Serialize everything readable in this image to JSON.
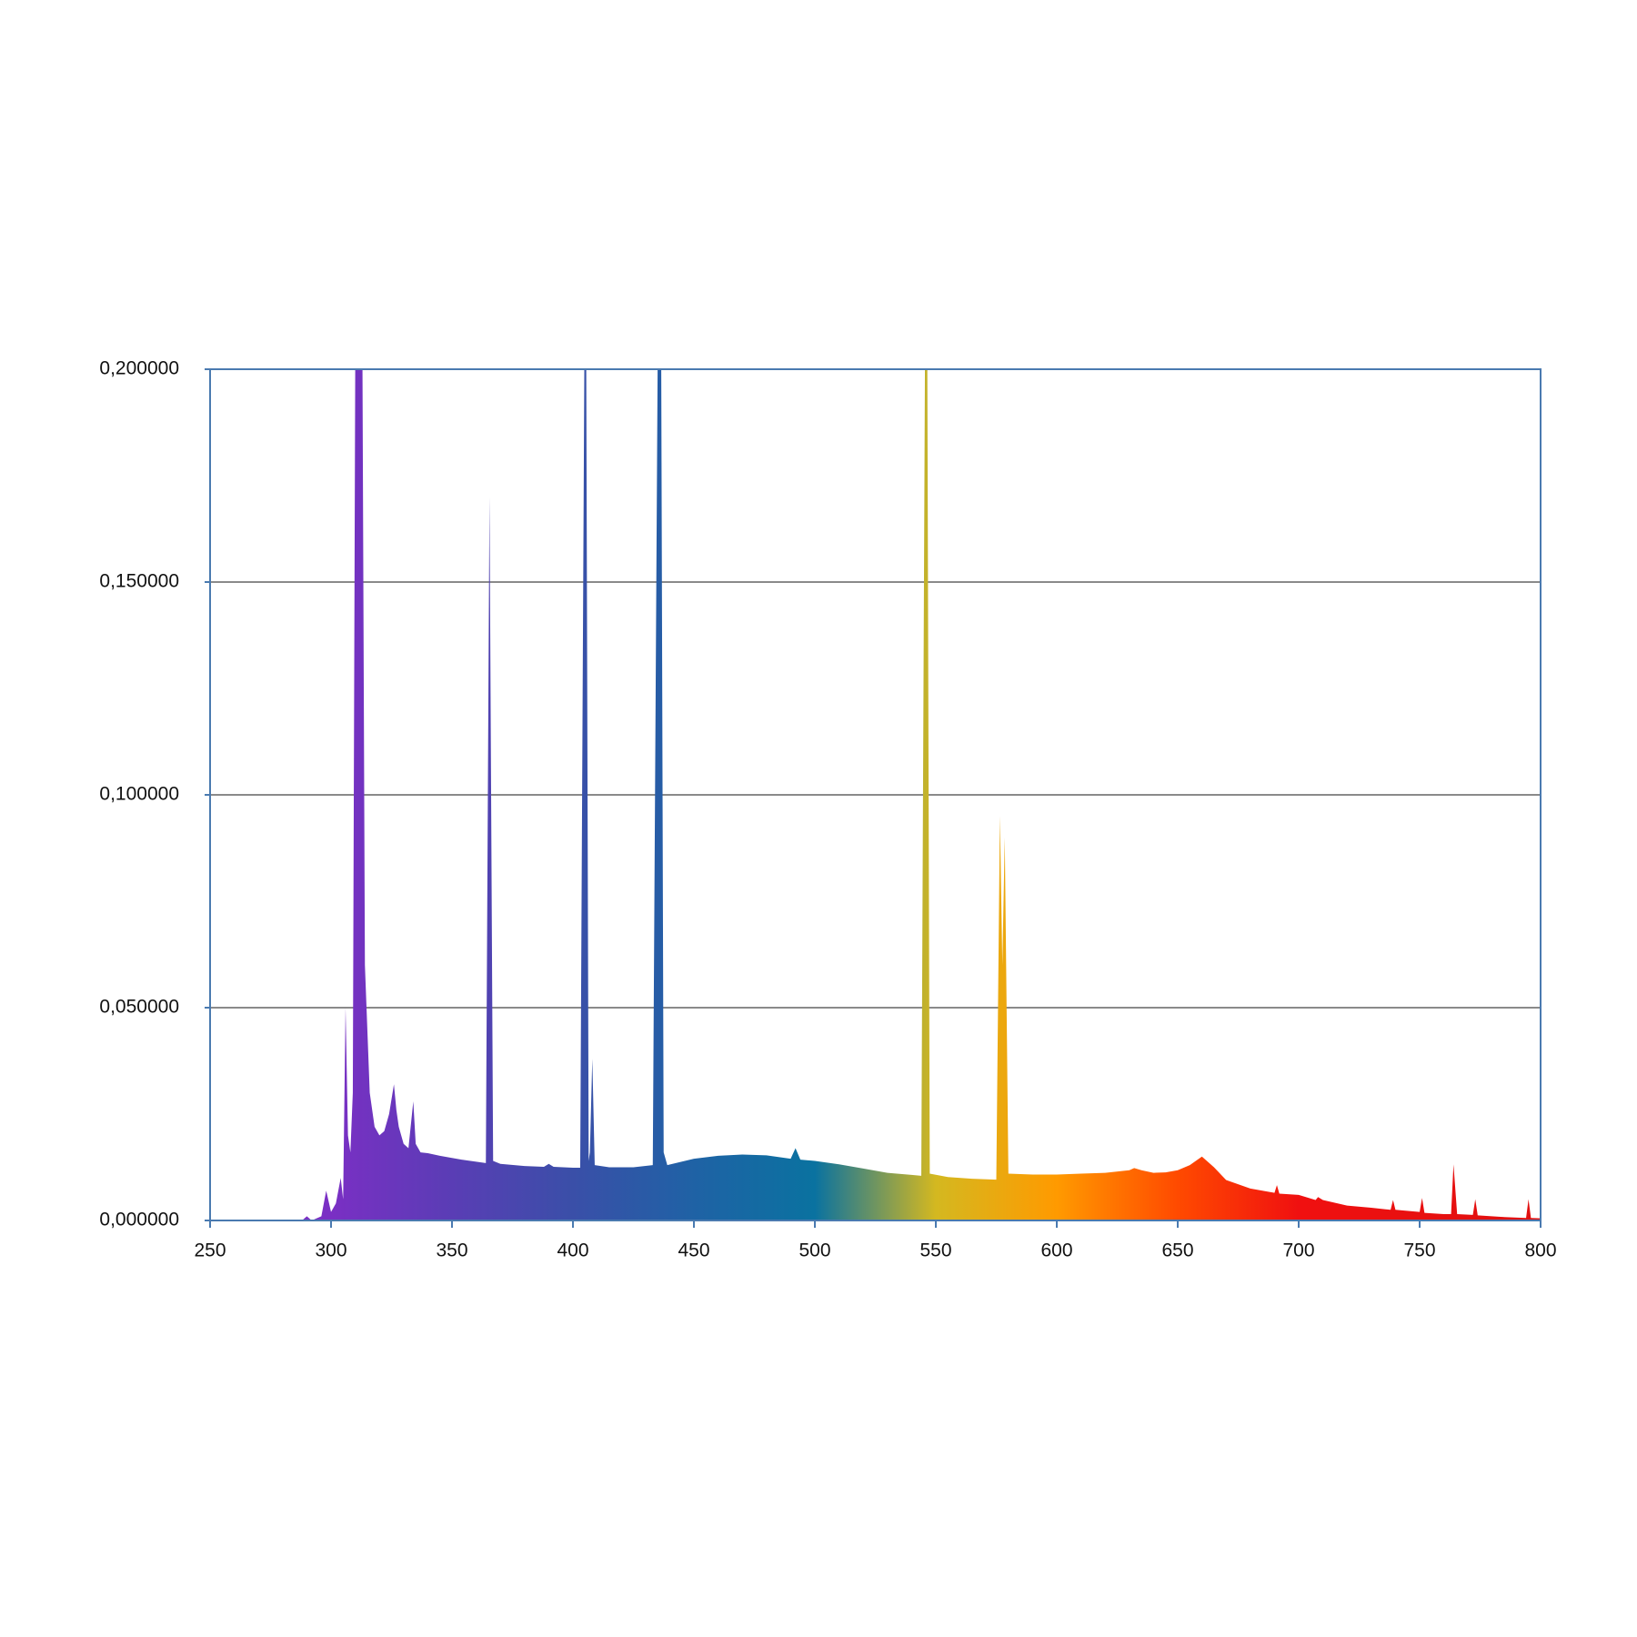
{
  "chart_data": {
    "type": "area",
    "x": [
      250,
      288,
      290,
      292,
      296,
      298,
      300,
      302,
      304,
      305,
      306,
      307,
      308,
      309,
      310,
      313,
      314,
      316,
      318,
      320,
      322,
      324,
      326,
      327,
      328,
      330,
      332,
      334,
      335,
      337,
      340,
      345,
      350,
      355,
      360,
      364,
      365.5,
      367,
      370,
      380,
      388,
      390,
      392,
      400,
      403,
      404.7,
      405.5,
      406.5,
      407,
      408,
      409,
      415,
      425,
      433,
      435,
      436.5,
      437.5,
      439,
      450,
      460,
      470,
      480,
      490,
      492,
      494,
      500,
      510,
      520,
      530,
      540,
      544,
      545.5,
      546.5,
      547.5,
      555,
      565,
      575,
      576.5,
      577.5,
      578.5,
      580,
      590,
      600,
      610,
      620,
      630,
      632,
      635,
      640,
      645,
      650,
      655,
      660,
      665,
      670,
      680,
      690,
      691,
      692,
      700,
      707,
      708,
      710,
      720,
      730,
      738,
      739,
      740,
      750,
      751,
      752,
      760,
      763,
      764,
      765.5,
      772,
      773,
      774,
      785,
      794,
      795,
      796,
      800
    ],
    "values": [
      0,
      0,
      0.001,
      0,
      0.001,
      0.007,
      0.002,
      0.004,
      0.01,
      0.005,
      0.05,
      0.02,
      0.016,
      0.03,
      0.2,
      0.2,
      0.06,
      0.03,
      0.022,
      0.02,
      0.021,
      0.025,
      0.032,
      0.026,
      0.022,
      0.018,
      0.017,
      0.028,
      0.018,
      0.016,
      0.0158,
      0.0152,
      0.0147,
      0.0142,
      0.0138,
      0.0135,
      0.17,
      0.014,
      0.0133,
      0.0128,
      0.0126,
      0.0133,
      0.0126,
      0.0124,
      0.0124,
      0.2,
      0.2,
      0.014,
      0.016,
      0.038,
      0.013,
      0.0125,
      0.0125,
      0.013,
      0.2,
      0.2,
      0.016,
      0.013,
      0.0145,
      0.0152,
      0.0155,
      0.0153,
      0.0145,
      0.017,
      0.0143,
      0.014,
      0.0132,
      0.0122,
      0.0112,
      0.0107,
      0.0105,
      0.2,
      0.2,
      0.011,
      0.0102,
      0.0098,
      0.0096,
      0.095,
      0.06,
      0.09,
      0.011,
      0.0108,
      0.0108,
      0.011,
      0.0112,
      0.0118,
      0.0123,
      0.0118,
      0.0112,
      0.0113,
      0.0118,
      0.013,
      0.015,
      0.0125,
      0.0095,
      0.0075,
      0.0065,
      0.0083,
      0.0063,
      0.006,
      0.0048,
      0.0055,
      0.0048,
      0.0035,
      0.003,
      0.0025,
      0.0048,
      0.0025,
      0.002,
      0.0053,
      0.0018,
      0.0015,
      0.0015,
      0.0132,
      0.0015,
      0.0013,
      0.005,
      0.0012,
      0.0008,
      0.0006,
      0.005,
      0.0006,
      0.0005
    ],
    "colors": [
      "#7a2fc4",
      "#7a2fc4",
      "#5a3db5",
      "#3a4fa8",
      "#1f62a5",
      "#0a72a0",
      "#d4b820",
      "#ff9a00",
      "#ff4a00",
      "#f01010",
      "#e81010",
      "#e01010"
    ],
    "xlim": [
      250,
      800
    ],
    "xticks": [
      250,
      300,
      350,
      400,
      450,
      500,
      550,
      600,
      650,
      700,
      750,
      800
    ],
    "ylim": [
      0,
      0.2
    ],
    "yticks": [
      {
        "value": 0,
        "label": "0,000000"
      },
      {
        "value": 0.05,
        "label": "0,050000"
      },
      {
        "value": 0.1,
        "label": "0,100000"
      },
      {
        "value": 0.15,
        "label": "0,150000"
      },
      {
        "value": 0.2,
        "label": "0,200000"
      }
    ],
    "grid": true
  }
}
